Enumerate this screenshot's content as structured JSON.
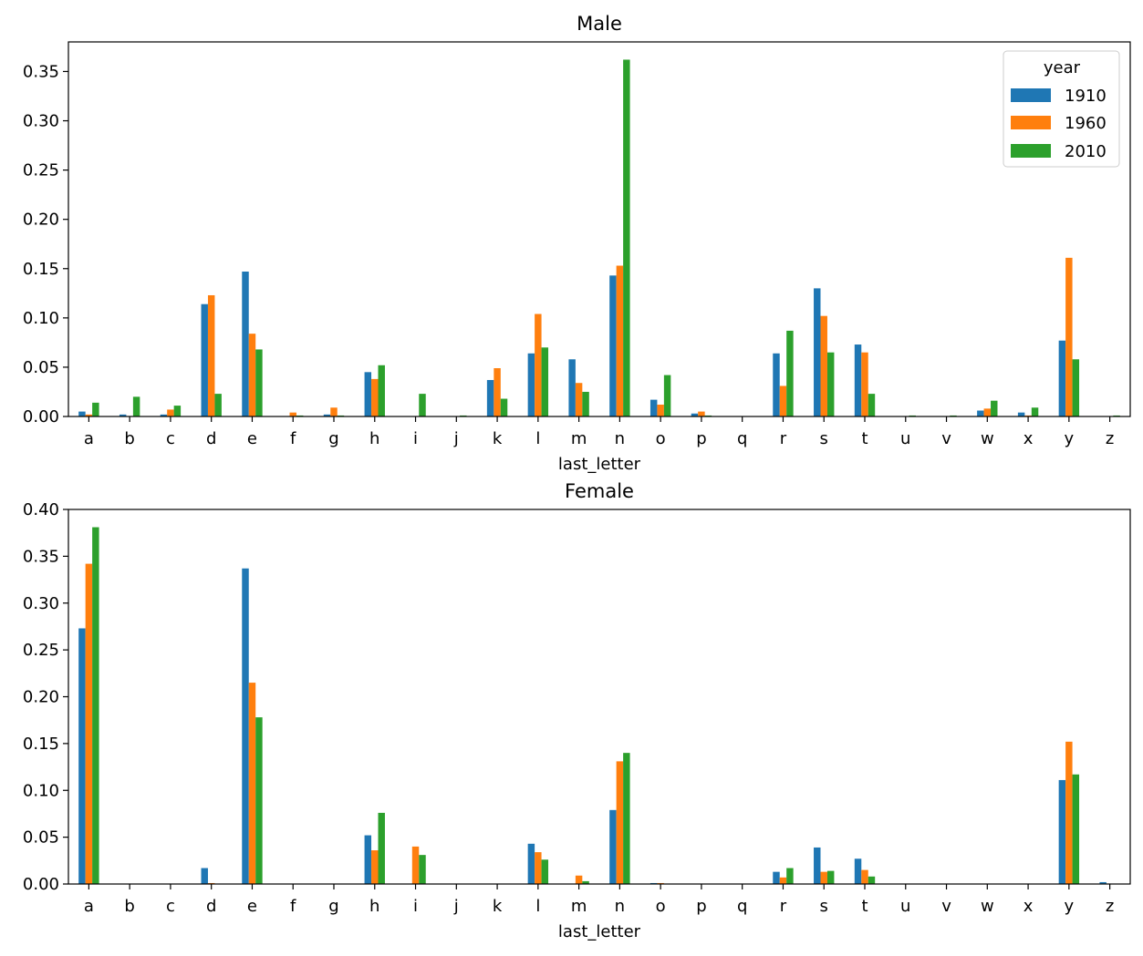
{
  "chart_data": [
    {
      "type": "bar",
      "title": "Male",
      "xlabel": "last_letter",
      "ylabel": "",
      "ylim": [
        0,
        0.38
      ],
      "yticks": [
        "0.00",
        "0.05",
        "0.10",
        "0.15",
        "0.20",
        "0.25",
        "0.30",
        "0.35"
      ],
      "grid": false,
      "legend": {
        "title": "year",
        "position": "top-right"
      },
      "categories": [
        "a",
        "b",
        "c",
        "d",
        "e",
        "f",
        "g",
        "h",
        "i",
        "j",
        "k",
        "l",
        "m",
        "n",
        "o",
        "p",
        "q",
        "r",
        "s",
        "t",
        "u",
        "v",
        "w",
        "x",
        "y",
        "z"
      ],
      "series": [
        {
          "name": "1910",
          "color": "#1f77b4",
          "values": [
            0.005,
            0.002,
            0.002,
            0.114,
            0.147,
            0.0,
            0.002,
            0.045,
            0.0,
            0.0,
            0.037,
            0.064,
            0.058,
            0.143,
            0.017,
            0.003,
            0.0,
            0.064,
            0.13,
            0.073,
            0.0,
            0.0,
            0.006,
            0.004,
            0.077,
            0.0
          ]
        },
        {
          "name": "1960",
          "color": "#ff7f0e",
          "values": [
            0.002,
            0.0,
            0.007,
            0.123,
            0.084,
            0.004,
            0.009,
            0.038,
            0.0,
            0.0,
            0.049,
            0.104,
            0.034,
            0.153,
            0.012,
            0.005,
            0.0,
            0.031,
            0.102,
            0.065,
            0.0,
            0.0,
            0.008,
            0.001,
            0.161,
            0.0
          ]
        },
        {
          "name": "2010",
          "color": "#2ca02c",
          "values": [
            0.014,
            0.02,
            0.011,
            0.023,
            0.068,
            0.001,
            0.001,
            0.052,
            0.023,
            0.001,
            0.018,
            0.07,
            0.025,
            0.362,
            0.042,
            0.001,
            0.0,
            0.087,
            0.065,
            0.023,
            0.001,
            0.001,
            0.016,
            0.009,
            0.058,
            0.001
          ]
        }
      ]
    },
    {
      "type": "bar",
      "title": "Female",
      "xlabel": "last_letter",
      "ylabel": "",
      "ylim": [
        0,
        0.4
      ],
      "yticks": [
        "0.00",
        "0.05",
        "0.10",
        "0.15",
        "0.20",
        "0.25",
        "0.30",
        "0.35",
        "0.40"
      ],
      "grid": false,
      "categories": [
        "a",
        "b",
        "c",
        "d",
        "e",
        "f",
        "g",
        "h",
        "i",
        "j",
        "k",
        "l",
        "m",
        "n",
        "o",
        "p",
        "q",
        "r",
        "s",
        "t",
        "u",
        "v",
        "w",
        "x",
        "y",
        "z"
      ],
      "series": [
        {
          "name": "1910",
          "color": "#1f77b4",
          "values": [
            0.273,
            0.0,
            0.0,
            0.017,
            0.337,
            0.0,
            0.0,
            0.052,
            0.0,
            0.0,
            0.0,
            0.043,
            0.0,
            0.079,
            0.001,
            0.0,
            0.0,
            0.013,
            0.039,
            0.027,
            0.0,
            0.0,
            0.0,
            0.0,
            0.111,
            0.002
          ]
        },
        {
          "name": "1960",
          "color": "#ff7f0e",
          "values": [
            0.342,
            0.0,
            0.0,
            0.001,
            0.215,
            0.0,
            0.0,
            0.036,
            0.04,
            0.0,
            0.0,
            0.034,
            0.009,
            0.131,
            0.001,
            0.0,
            0.0,
            0.007,
            0.013,
            0.015,
            0.0,
            0.0,
            0.0,
            0.0,
            0.152,
            0.0
          ]
        },
        {
          "name": "2010",
          "color": "#2ca02c",
          "values": [
            0.381,
            0.0,
            0.0,
            0.0,
            0.178,
            0.0,
            0.0,
            0.076,
            0.031,
            0.0,
            0.0,
            0.026,
            0.003,
            0.14,
            0.0,
            0.0,
            0.0,
            0.017,
            0.014,
            0.008,
            0.0,
            0.0,
            0.0,
            0.0,
            0.117,
            0.0
          ]
        }
      ]
    }
  ]
}
